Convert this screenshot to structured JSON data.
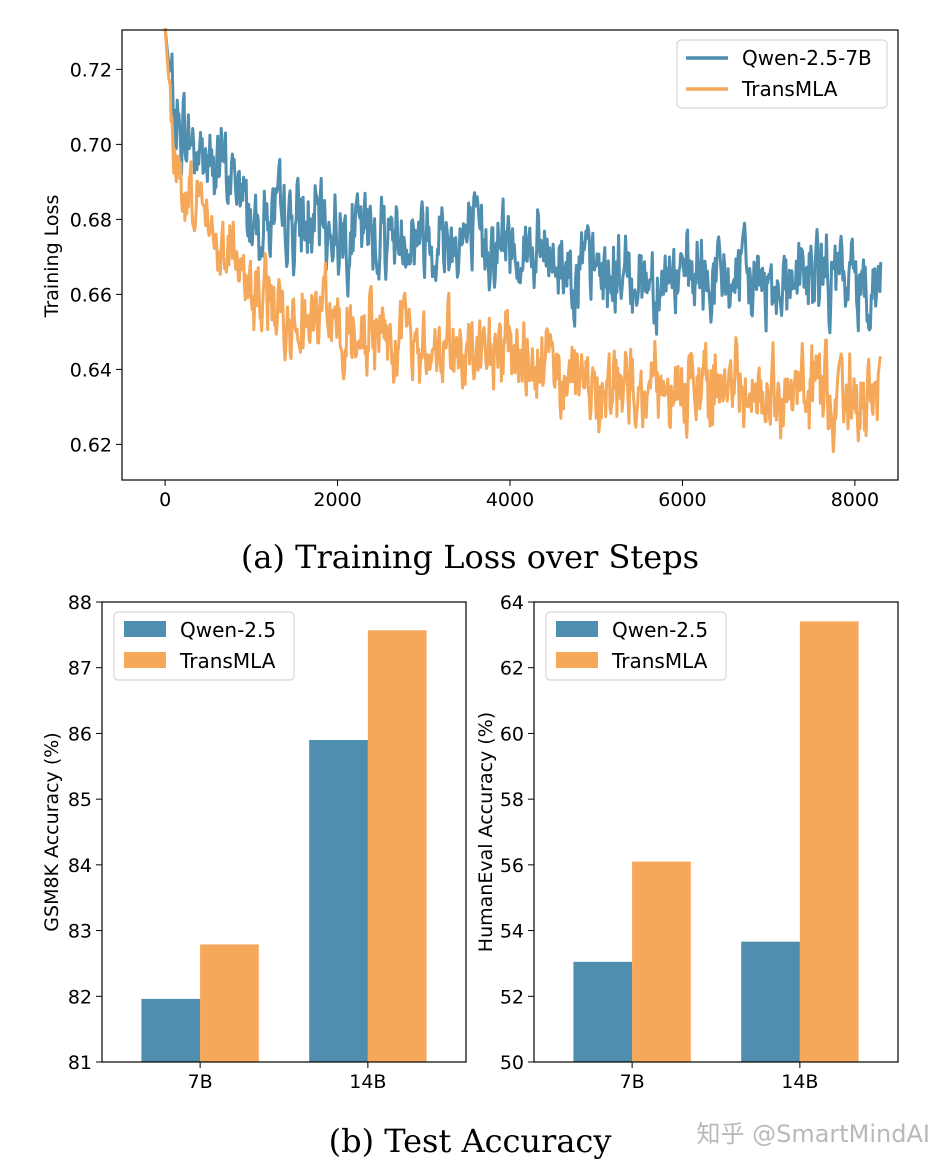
{
  "colors": {
    "qwen": "#4f8eae",
    "transmla": "#f5a85a",
    "axis": "#000000",
    "legend_border": "#cccccc",
    "watermark": "#b9b9b9"
  },
  "captions": {
    "a": "(a) Training Loss over Steps",
    "b": "(b) Test Accuracy"
  },
  "watermark": "知乎 @SmartMindAI",
  "chart_data": [
    {
      "id": "loss",
      "type": "line",
      "title": "",
      "xlabel": "",
      "ylabel": "Training Loss",
      "xlim": [
        -500,
        8500
      ],
      "ylim": [
        0.6105,
        0.7305
      ],
      "xticks": [
        0,
        2000,
        4000,
        6000,
        8000
      ],
      "xtick_labels": [
        "0",
        "2000",
        "4000",
        "6000",
        "8000"
      ],
      "yticks": [
        0.62,
        0.64,
        0.66,
        0.68,
        0.7,
        0.72
      ],
      "ytick_labels": [
        "0.62",
        "0.64",
        "0.66",
        "0.68",
        "0.70",
        "0.72"
      ],
      "legend_position": "top-right",
      "series": [
        {
          "name": "Qwen-2.5-7B",
          "x": [
            0,
            100,
            200,
            400,
            600,
            800,
            1000,
            1500,
            2000,
            2500,
            3000,
            3500,
            4000,
            4500,
            5000,
            5500,
            6000,
            6500,
            7000,
            7500,
            8000,
            8300
          ],
          "y": [
            0.731,
            0.708,
            0.703,
            0.698,
            0.694,
            0.691,
            0.681,
            0.679,
            0.677,
            0.676,
            0.676,
            0.675,
            0.673,
            0.669,
            0.666,
            0.665,
            0.664,
            0.664,
            0.663,
            0.665,
            0.664,
            0.663
          ]
        },
        {
          "name": "TransMLA",
          "x": [
            0,
            100,
            200,
            400,
            600,
            800,
            1000,
            1500,
            2000,
            2500,
            3000,
            3500,
            4000,
            4500,
            5000,
            5500,
            6000,
            6500,
            7000,
            7500,
            8000,
            8300
          ],
          "y": [
            0.731,
            0.698,
            0.69,
            0.684,
            0.676,
            0.672,
            0.66,
            0.655,
            0.652,
            0.649,
            0.647,
            0.645,
            0.643,
            0.639,
            0.636,
            0.636,
            0.635,
            0.636,
            0.635,
            0.635,
            0.634,
            0.633
          ]
        }
      ]
    },
    {
      "id": "gsm8k",
      "type": "bar",
      "title": "",
      "xlabel": "",
      "ylabel": "GSM8K Accuracy (%)",
      "categories": [
        "7B",
        "14B"
      ],
      "ylim": [
        81,
        88
      ],
      "yticks": [
        81,
        82,
        83,
        84,
        85,
        86,
        87,
        88
      ],
      "legend_position": "top-left",
      "series": [
        {
          "name": "Qwen-2.5",
          "values": [
            81.96,
            85.9
          ]
        },
        {
          "name": "TransMLA",
          "values": [
            82.79,
            87.57
          ]
        }
      ]
    },
    {
      "id": "humaneval",
      "type": "bar",
      "title": "",
      "xlabel": "",
      "ylabel": "HumanEval Accuracy (%)",
      "categories": [
        "7B",
        "14B"
      ],
      "ylim": [
        50,
        64
      ],
      "yticks": [
        50,
        52,
        54,
        56,
        58,
        60,
        62,
        64
      ],
      "legend_position": "top-left",
      "series": [
        {
          "name": "Qwen-2.5",
          "values": [
            53.05,
            53.66
          ]
        },
        {
          "name": "TransMLA",
          "values": [
            56.1,
            63.41
          ]
        }
      ]
    }
  ]
}
